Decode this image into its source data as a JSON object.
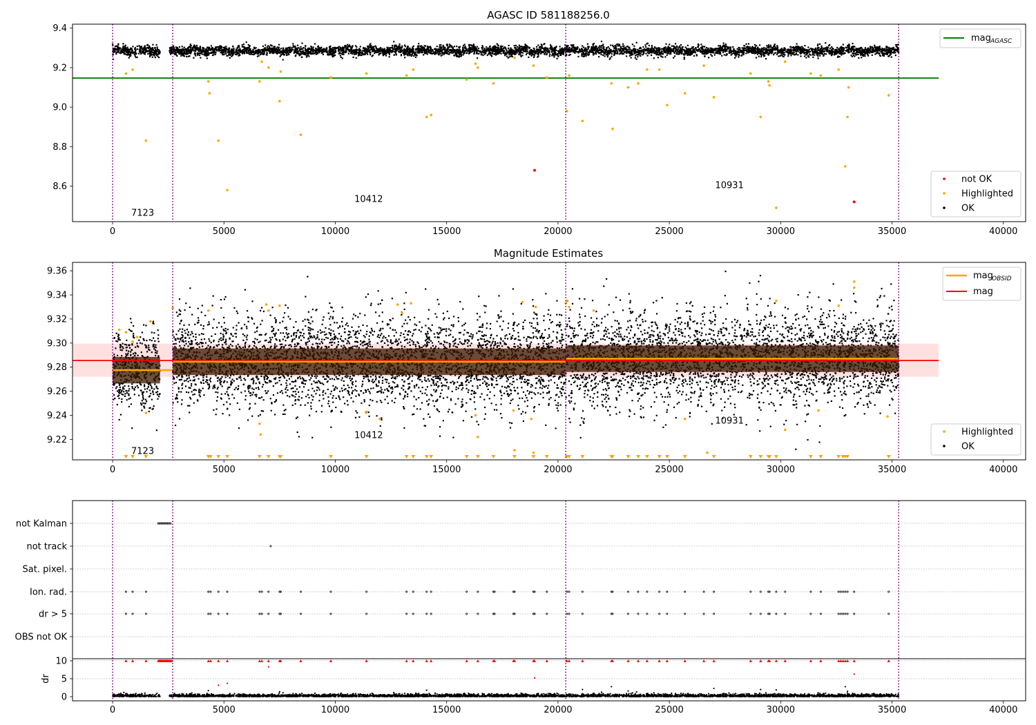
{
  "chart_data": [
    {
      "type": "scatter",
      "title": "AGASC ID 581188256.0",
      "xlim": [
        -1800,
        41000
      ],
      "ylim": [
        8.42,
        9.42
      ],
      "yticks": [
        8.6,
        8.8,
        9.0,
        9.2,
        9.4
      ],
      "xticks": [
        0,
        5000,
        10000,
        15000,
        20000,
        25000,
        30000,
        35000,
        40000
      ],
      "mag_agasc": 9.147,
      "mag_agasc_x_range": [
        -1800,
        37100
      ],
      "obs_boundaries": [
        0,
        2700,
        20350,
        35300
      ],
      "obs_labels": [
        {
          "text": "7123",
          "x": 1350,
          "y": 8.45
        },
        {
          "text": "10412",
          "x": 11500,
          "y": 8.52
        },
        {
          "text": "10931",
          "x": 27700,
          "y": 8.59
        }
      ],
      "ok_band": {
        "x_ranges": [
          [
            0,
            2130
          ],
          [
            2550,
            35300
          ]
        ],
        "y_center": 9.285,
        "y_spread": 0.025
      },
      "series": [
        {
          "name": "not OK",
          "color": "#ff0000",
          "points": [
            [
              18950,
              8.68
            ],
            [
              33300,
              8.52
            ]
          ]
        },
        {
          "name": "Highlighted",
          "color": "#ffa500",
          "points": [
            [
              600,
              9.17
            ],
            [
              900,
              9.19
            ],
            [
              1500,
              8.83
            ],
            [
              4300,
              9.13
            ],
            [
              4350,
              9.07
            ],
            [
              4750,
              8.83
            ],
            [
              5150,
              8.58
            ],
            [
              6600,
              9.13
            ],
            [
              6700,
              9.23
            ],
            [
              7000,
              9.2
            ],
            [
              7500,
              9.03
            ],
            [
              7550,
              9.18
            ],
            [
              8450,
              8.86
            ],
            [
              9800,
              9.15
            ],
            [
              11400,
              9.17
            ],
            [
              13200,
              9.16
            ],
            [
              13500,
              9.19
            ],
            [
              14100,
              8.95
            ],
            [
              14300,
              8.96
            ],
            [
              15900,
              9.14
            ],
            [
              16300,
              9.22
            ],
            [
              16400,
              9.2
            ],
            [
              17100,
              9.12
            ],
            [
              18050,
              9.25
            ],
            [
              18900,
              9.21
            ],
            [
              19500,
              9.15
            ],
            [
              20400,
              8.98
            ],
            [
              20500,
              9.16
            ],
            [
              21100,
              8.93
            ],
            [
              22400,
              9.12
            ],
            [
              22450,
              8.89
            ],
            [
              23150,
              9.1
            ],
            [
              23600,
              9.12
            ],
            [
              24000,
              9.19
            ],
            [
              24550,
              9.19
            ],
            [
              24900,
              9.01
            ],
            [
              25700,
              9.07
            ],
            [
              26550,
              9.21
            ],
            [
              27000,
              9.05
            ],
            [
              28650,
              9.17
            ],
            [
              29100,
              8.95
            ],
            [
              29450,
              9.13
            ],
            [
              29500,
              9.11
            ],
            [
              29800,
              8.49
            ],
            [
              30200,
              9.23
            ],
            [
              31350,
              9.17
            ],
            [
              31800,
              9.16
            ],
            [
              32600,
              9.19
            ],
            [
              32900,
              8.7
            ],
            [
              33000,
              8.95
            ],
            [
              33050,
              9.1
            ],
            [
              34850,
              9.06
            ]
          ]
        },
        {
          "name": "OK",
          "color": "#000000",
          "points": []
        }
      ],
      "legend_top": [
        {
          "label": "mag",
          "sub": "AGASC",
          "color": "#008000"
        }
      ],
      "legend_bottom": [
        {
          "label": "not OK",
          "color": "#ff0000"
        },
        {
          "label": "Highlighted",
          "color": "#ffa500"
        },
        {
          "label": "OK",
          "color": "#000000"
        }
      ],
      "legend_placement": [
        "top-right",
        "bottom-right"
      ]
    },
    {
      "type": "scatter",
      "title": "Magnitude Estimates",
      "xlim": [
        -1800,
        41000
      ],
      "ylim": [
        9.203,
        9.367
      ],
      "yticks": [
        9.22,
        9.24,
        9.26,
        9.28,
        9.3,
        9.32,
        9.34,
        9.36
      ],
      "xticks": [
        0,
        5000,
        10000,
        15000,
        20000,
        25000,
        30000,
        35000,
        40000
      ],
      "mag": 9.2855,
      "mag_band": [
        9.272,
        9.2995
      ],
      "mag_x_range": [
        -1800,
        37100
      ],
      "mag_obsid": [
        {
          "x": [
            0,
            2700
          ],
          "value": 9.2775
        },
        {
          "x": [
            2700,
            20350
          ],
          "value": 9.2845
        },
        {
          "x": [
            20350,
            35300
          ],
          "value": 9.287
        }
      ],
      "obs_boundaries": [
        0,
        2700,
        20350,
        35300
      ],
      "obs_labels": [
        {
          "text": "7123",
          "x": 1350,
          "y": 9.208
        },
        {
          "text": "10412",
          "x": 11500,
          "y": 9.221
        },
        {
          "text": "10931",
          "x": 27700,
          "y": 9.233
        }
      ],
      "highlighted_points": [
        [
          300,
          9.311
        ],
        [
          600,
          9.309
        ],
        [
          900,
          9.301
        ],
        [
          1100,
          9.305
        ],
        [
          1500,
          9.242
        ],
        [
          1700,
          9.318
        ],
        [
          2700,
          9.329
        ],
        [
          4300,
          9.327
        ],
        [
          6600,
          9.233
        ],
        [
          6650,
          9.224
        ],
        [
          6900,
          9.332
        ],
        [
          7000,
          9.327
        ],
        [
          7500,
          9.331
        ],
        [
          11400,
          9.243
        ],
        [
          12000,
          9.237
        ],
        [
          12800,
          9.332
        ],
        [
          13000,
          9.325
        ],
        [
          13400,
          9.333
        ],
        [
          16300,
          9.24
        ],
        [
          16400,
          9.222
        ],
        [
          18000,
          9.244
        ],
        [
          18050,
          9.211
        ],
        [
          18400,
          9.334
        ],
        [
          18800,
          9.237
        ],
        [
          18900,
          9.209
        ],
        [
          19000,
          9.33
        ],
        [
          20350,
          9.333
        ],
        [
          20400,
          9.335
        ],
        [
          20500,
          9.33
        ],
        [
          21600,
          9.327
        ],
        [
          25700,
          9.237
        ],
        [
          26700,
          9.209
        ],
        [
          29800,
          9.335
        ],
        [
          30200,
          9.228
        ],
        [
          31700,
          9.244
        ],
        [
          32600,
          9.331
        ],
        [
          33300,
          9.351
        ],
        [
          33300,
          9.346
        ],
        [
          34800,
          9.239
        ]
      ],
      "below_axis_points_x": [
        600,
        900,
        1500,
        4300,
        4400,
        4750,
        5150,
        6600,
        7000,
        7500,
        7550,
        9800,
        11400,
        13200,
        13500,
        14100,
        14300,
        15900,
        16400,
        17100,
        18050,
        18900,
        19500,
        20400,
        20500,
        21100,
        22400,
        22450,
        23150,
        23600,
        24000,
        24550,
        24900,
        25700,
        27000,
        28650,
        29100,
        29450,
        29500,
        29800,
        31350,
        31800,
        32600,
        32800,
        32900,
        33000,
        34850
      ],
      "legend_top": [
        {
          "label": "mag",
          "sub": "OBSID",
          "color": "#ffa500"
        },
        {
          "label": "mag",
          "sub": "",
          "color": "#ff0000"
        }
      ],
      "legend_bottom": [
        {
          "label": "Highlighted",
          "color": "#ffa500"
        },
        {
          "label": "OK",
          "color": "#000000"
        }
      ],
      "legend_placement": [
        "top-right",
        "bottom-right"
      ]
    },
    {
      "type": "scatter",
      "xlim": [
        -1800,
        41000
      ],
      "xticks": [
        0,
        5000,
        10000,
        15000,
        20000,
        25000,
        30000,
        35000,
        40000
      ],
      "flag_rows": [
        "not Kalman",
        "not track",
        "Sat. pixel.",
        "Ion. rad.",
        "dr > 5",
        "OBS not OK"
      ],
      "not_kalman_x_range": [
        2050,
        2600
      ],
      "not_track_x": [
        7100
      ],
      "flag_event_x": [
        600,
        900,
        1500,
        4300,
        4400,
        4750,
        5150,
        6600,
        6700,
        7000,
        7500,
        7550,
        8450,
        9800,
        11400,
        13200,
        13500,
        14100,
        14300,
        15900,
        16400,
        17100,
        17150,
        18000,
        18050,
        18900,
        18950,
        19500,
        20400,
        20500,
        21100,
        22400,
        22450,
        23150,
        23600,
        24000,
        24550,
        24900,
        25700,
        26550,
        27000,
        28650,
        29100,
        29450,
        29500,
        29800,
        30200,
        31350,
        31800,
        32600,
        32700,
        32800,
        32900,
        33000,
        33300,
        34850
      ],
      "dr_ylabel": "dr",
      "dr_yticks": [
        0,
        5,
        10
      ],
      "dr_red_points": [
        [
          18950,
          5.2
        ],
        [
          33300,
          6.3
        ],
        [
          4750,
          3.2
        ],
        [
          5150,
          3.7
        ],
        [
          7000,
          8.3
        ]
      ],
      "dr_outliers": [
        [
          4300,
          1.7
        ],
        [
          7500,
          1.4
        ],
        [
          14100,
          1.8
        ],
        [
          21100,
          2.0
        ],
        [
          22400,
          2.8
        ],
        [
          23150,
          1.6
        ],
        [
          27000,
          2.3
        ],
        [
          29100,
          2.0
        ],
        [
          29800,
          1.9
        ],
        [
          32900,
          2.8
        ],
        [
          33000,
          1.5
        ]
      ],
      "obs_boundaries": [
        0,
        2700,
        20350,
        35300
      ]
    }
  ]
}
